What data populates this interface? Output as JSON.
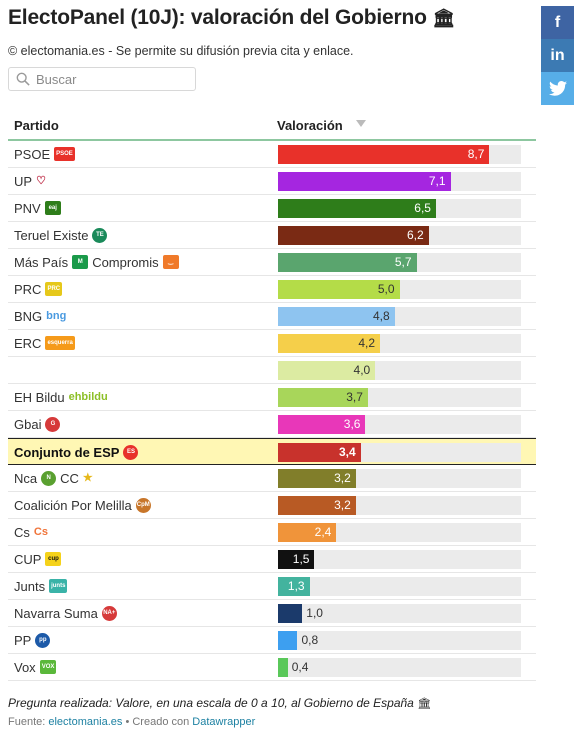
{
  "title": "ElectoPanel (10J): valoración del Gobierno",
  "title_emoji": "🏛",
  "subtitle": "© electomania.es - Se permite su difusión previa cita y enlace.",
  "share": {
    "facebook": "f",
    "linkedin": "in",
    "twitter": "🐦"
  },
  "search": {
    "placeholder": "Buscar"
  },
  "columns": {
    "party": "Partido",
    "rating": "Valoración"
  },
  "chart_data": {
    "type": "bar",
    "orientation": "horizontal",
    "xlim": [
      0,
      10
    ],
    "categories": [
      "PSOE",
      "UP",
      "PNV",
      "Teruel Existe",
      "Más País Compromis",
      "PRC",
      "BNG",
      "ERC",
      "",
      "EH Bildu",
      "Gbai",
      "Conjunto de ESP",
      "Nca CC",
      "Coalición Por Melilla",
      "Cs",
      "CUP",
      "Junts",
      "Navarra Suma",
      "PP",
      "Vox"
    ],
    "values": [
      8.7,
      7.1,
      6.5,
      6.2,
      5.7,
      5.0,
      4.8,
      4.2,
      4.0,
      3.7,
      3.6,
      3.4,
      3.2,
      3.2,
      2.4,
      1.5,
      1.3,
      1.0,
      0.8,
      0.4
    ],
    "value_labels": [
      "8,7",
      "7,1",
      "6,5",
      "6,2",
      "5,7",
      "5,0",
      "4,8",
      "4,2",
      "4,0",
      "3,7",
      "3,6",
      "3,4",
      "3,2",
      "3,2",
      "2,4",
      "1,5",
      "1,3",
      "1,0",
      "0,8",
      "0,4"
    ],
    "colors": [
      "#e8312a",
      "#a526e0",
      "#2e7d1a",
      "#7a2a14",
      "#5aa56e",
      "#b4dc48",
      "#8ec4f0",
      "#f5cf4a",
      "#dceba2",
      "#a8d65a",
      "#e837b9",
      "#c8322c",
      "#817e2a",
      "#b85a24",
      "#f0943a",
      "#111111",
      "#43b39e",
      "#1b3a6b",
      "#3d9ff0",
      "#5ac85a"
    ],
    "highlight": "Conjunto de ESP"
  },
  "rows": [
    {
      "name": "PSOE",
      "logo": {
        "text": "PSOE",
        "bg": "#e8312a",
        "shape": "rect"
      }
    },
    {
      "name": "UP",
      "logo": {
        "text": "♡",
        "bg": "#ffffff",
        "fg": "#c0304a",
        "shape": "txt"
      }
    },
    {
      "name": "PNV",
      "logo": {
        "text": "eaj",
        "bg": "#2e7d1a",
        "shape": "rect"
      }
    },
    {
      "name": "Teruel Existe",
      "logo": {
        "text": "TE",
        "bg": "#1a8a5a",
        "shape": "circle"
      }
    },
    {
      "name": "Más País",
      "name2": "Compromis",
      "logo": {
        "text": "M",
        "bg": "#1a9a4a",
        "shape": "rect"
      },
      "logo2": {
        "text": "‿",
        "bg": "#f07a2a",
        "shape": "rect"
      }
    },
    {
      "name": "PRC",
      "logo": {
        "text": "PRC",
        "bg": "#e6c81a",
        "shape": "rect"
      }
    },
    {
      "name": "BNG",
      "logo": {
        "text": "bng",
        "bg": "#ffffff",
        "fg": "#4a9ae0",
        "shape": "txt"
      }
    },
    {
      "name": "ERC",
      "logo": {
        "text": "esquerra",
        "bg": "#f59a1a",
        "shape": "rect"
      }
    },
    {
      "name": "",
      "logo": null
    },
    {
      "name": "EH Bildu",
      "logo": {
        "text": "ehbildu",
        "bg": "#ffffff",
        "fg": "#8cbf26",
        "shape": "txt"
      }
    },
    {
      "name": "Gbai",
      "logo": {
        "text": "G",
        "bg": "#d63a3a",
        "shape": "circle"
      }
    },
    {
      "name": "Conjunto de ESP",
      "logo": {
        "text": "ES",
        "bg": "#e8312a",
        "shape": "circle"
      }
    },
    {
      "name": "Nca",
      "name2": "CC",
      "logo": {
        "text": "N",
        "bg": "#5aa030",
        "shape": "circle"
      },
      "logo2": {
        "text": "★",
        "bg": "#ffffff",
        "fg": "#e6b81a",
        "shape": "txt"
      }
    },
    {
      "name": "Coalición Por Melilla",
      "logo": {
        "text": "CpM",
        "bg": "#c8762a",
        "shape": "circle"
      }
    },
    {
      "name": "Cs",
      "logo": {
        "text": "Cs",
        "bg": "#ffffff",
        "fg": "#f0743a",
        "shape": "txt"
      }
    },
    {
      "name": "CUP",
      "logo": {
        "text": "cup",
        "bg": "#f5d21a",
        "fg": "#111111",
        "shape": "rect"
      }
    },
    {
      "name": "Junts",
      "logo": {
        "text": "junts",
        "bg": "#3ab3a8",
        "shape": "rect"
      }
    },
    {
      "name": "Navarra Suma",
      "logo": {
        "text": "NA+",
        "bg": "#d63a3a",
        "shape": "circle"
      }
    },
    {
      "name": "PP",
      "logo": {
        "text": "pp",
        "bg": "#1d5aa8",
        "shape": "circle"
      }
    },
    {
      "name": "Vox",
      "logo": {
        "text": "VOX",
        "bg": "#5ab83a",
        "shape": "rect"
      }
    }
  ],
  "footnote": "Pregunta realizada: Valore, en una escala de 0 a 10, al Gobierno de España",
  "footnote_emoji": "🏛",
  "source": {
    "label": "Fuente:",
    "link": "electomania.es",
    "sep": "•",
    "created": "Creado con",
    "tool": "Datawrapper"
  }
}
